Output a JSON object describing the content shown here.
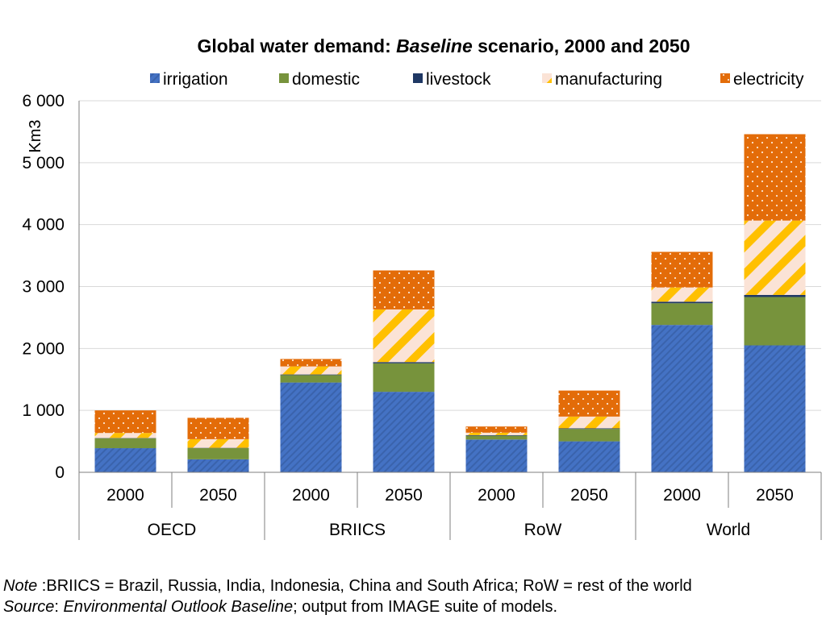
{
  "title": {
    "prefix": "Global water demand: ",
    "italic": "Baseline",
    "suffix": " scenario, 2000 and 2050"
  },
  "notes": {
    "note_label": "Note",
    "note_text": " :BRIICS = Brazil, Russia, India, Indonesia, China and South Africa; RoW = rest of the world",
    "source_label": "Source",
    "source_sep": ": ",
    "source_italic": "Environmental Outlook Baseline",
    "source_text": "; output from IMAGE suite of models."
  },
  "chart_data": {
    "type": "bar",
    "stacked": true,
    "title": "Global water demand: Baseline scenario, 2000 and 2050",
    "ylabel": "Km3",
    "ylim": [
      0,
      6000
    ],
    "yticks": [
      0,
      1000,
      2000,
      3000,
      4000,
      5000,
      6000
    ],
    "ytick_labels": [
      "0",
      "1 000",
      "2 000",
      "3 000",
      "4 000",
      "5 000",
      "6 000"
    ],
    "grid": true,
    "legend_position": "top",
    "groups": [
      "OECD",
      "BRIICS",
      "RoW",
      "World"
    ],
    "categories": [
      "2000",
      "2050",
      "2000",
      "2050",
      "2000",
      "2050",
      "2000",
      "2050"
    ],
    "series": [
      {
        "name": "irrigation",
        "color": "#4472C4",
        "pattern": "diagonal-stripes",
        "values": [
          390,
          210,
          1450,
          1300,
          530,
          500,
          2380,
          2050
        ]
      },
      {
        "name": "domestic",
        "color": "#77933C",
        "pattern": "solid",
        "values": [
          160,
          180,
          120,
          460,
          60,
          200,
          350,
          780
        ]
      },
      {
        "name": "livestock",
        "color": "#1F3864",
        "pattern": "solid",
        "values": [
          5,
          5,
          10,
          20,
          10,
          10,
          25,
          35
        ]
      },
      {
        "name": "manufacturing",
        "color": "#FFC000",
        "pattern": "wide-diagonal-stripes",
        "values": [
          80,
          140,
          130,
          850,
          40,
          190,
          230,
          1200
        ]
      },
      {
        "name": "electricity",
        "color": "#E36C09",
        "pattern": "dots",
        "values": [
          365,
          345,
          120,
          630,
          100,
          420,
          575,
          1395
        ]
      }
    ]
  }
}
